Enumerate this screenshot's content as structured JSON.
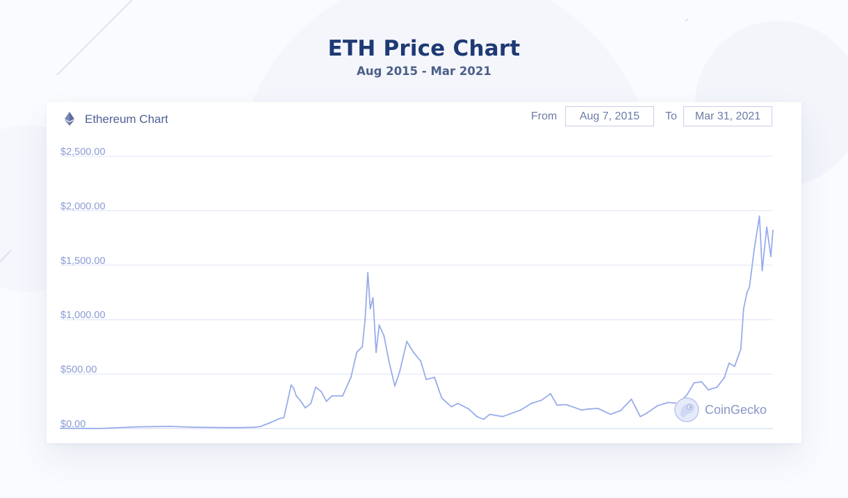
{
  "header": {
    "title": "ETH Price Chart",
    "subtitle": "Aug 2015 - Mar 2021"
  },
  "card": {
    "coin_icon": "ethereum-icon",
    "coin_label": "Ethereum Chart",
    "from_label": "From",
    "from_value": "Aug 7, 2015",
    "to_label": "To",
    "to_value": "Mar 31, 2021"
  },
  "watermark": {
    "text": "CoinGecko",
    "icon": "coingecko-logo"
  },
  "colors": {
    "title": "#1e3a73",
    "line": "#98acea",
    "grid": "#dee4f8",
    "tick": "#8a9bd6"
  },
  "chart_data": {
    "type": "line",
    "title": "",
    "xlabel": "",
    "ylabel": "",
    "xlim": [
      "2015-08-07",
      "2021-03-31"
    ],
    "ylim": [
      0,
      2500
    ],
    "y_ticks": [
      "$0.00",
      "$500.00",
      "$1,000.00",
      "$1,500.00",
      "$2,000.00",
      "$2,500.00"
    ],
    "y_tick_values": [
      0,
      500,
      1000,
      1500,
      2000,
      2500
    ],
    "grid": true,
    "series": [
      {
        "name": "",
        "x": [
          "2015-08-07",
          "2015-12-01",
          "2016-03-13",
          "2016-06-17",
          "2016-09-01",
          "2016-12-01",
          "2017-01-01",
          "2017-02-20",
          "2017-03-10",
          "2017-03-18",
          "2017-04-01",
          "2017-05-01",
          "2017-05-15",
          "2017-06-05",
          "2017-06-12",
          "2017-06-20",
          "2017-07-01",
          "2017-07-16",
          "2017-08-01",
          "2017-08-15",
          "2017-08-31",
          "2017-09-15",
          "2017-10-01",
          "2017-11-01",
          "2017-11-25",
          "2017-12-12",
          "2017-12-28",
          "2018-01-05",
          "2018-01-13",
          "2018-01-20",
          "2018-01-28",
          "2018-02-06",
          "2018-02-15",
          "2018-03-01",
          "2018-03-15",
          "2018-04-01",
          "2018-04-15",
          "2018-05-06",
          "2018-05-25",
          "2018-06-15",
          "2018-07-01",
          "2018-07-25",
          "2018-08-15",
          "2018-09-12",
          "2018-10-01",
          "2018-11-01",
          "2018-11-25",
          "2018-12-14",
          "2019-01-01",
          "2019-02-07",
          "2019-03-01",
          "2019-04-01",
          "2019-05-01",
          "2019-05-31",
          "2019-06-26",
          "2019-07-15",
          "2019-08-10",
          "2019-09-24",
          "2019-10-15",
          "2019-11-10",
          "2019-12-17",
          "2020-01-15",
          "2020-02-15",
          "2020-03-12",
          "2020-03-30",
          "2020-05-01",
          "2020-06-01",
          "2020-07-01",
          "2020-07-25",
          "2020-08-15",
          "2020-09-05",
          "2020-09-25",
          "2020-10-20",
          "2020-11-10",
          "2020-11-24",
          "2020-12-10",
          "2020-12-28",
          "2021-01-05",
          "2021-01-15",
          "2021-01-22",
          "2021-02-05",
          "2021-02-20",
          "2021-02-28",
          "2021-03-13",
          "2021-03-25",
          "2021-03-31"
        ],
        "values": [
          2.8,
          0.9,
          15,
          20,
          12,
          8,
          8,
          12,
          20,
          32,
          48,
          90,
          100,
          400,
          370,
          300,
          260,
          190,
          230,
          380,
          340,
          250,
          300,
          300,
          470,
          700,
          750,
          1000,
          1430,
          1100,
          1200,
          700,
          950,
          850,
          620,
          390,
          520,
          800,
          700,
          620,
          450,
          470,
          280,
          200,
          230,
          180,
          110,
          85,
          130,
          110,
          135,
          170,
          230,
          260,
          320,
          215,
          220,
          170,
          180,
          185,
          130,
          165,
          270,
          110,
          140,
          210,
          240,
          230,
          310,
          420,
          430,
          355,
          380,
          465,
          600,
          570,
          730,
          1100,
          1250,
          1300,
          1650,
          1950,
          1450,
          1850,
          1580,
          1820
        ]
      }
    ]
  }
}
